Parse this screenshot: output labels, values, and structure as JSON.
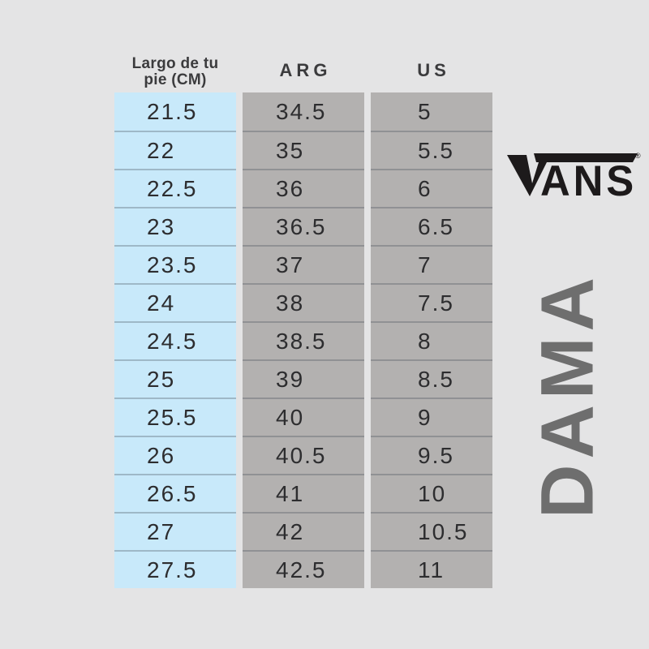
{
  "page": {
    "background": "#e4e4e5"
  },
  "table": {
    "columns": [
      {
        "key": "cm",
        "header_lines": [
          "Largo de tu",
          "pie (CM)"
        ],
        "bg": "#c8e9fa"
      },
      {
        "key": "arg",
        "header": "ARG",
        "bg": "#b3b1b0"
      },
      {
        "key": "us",
        "header": "US",
        "bg": "#b3b1b0"
      }
    ],
    "rows": [
      {
        "cm": "21.5",
        "arg": "34.5",
        "us": "5"
      },
      {
        "cm": "22",
        "arg": "35",
        "us": "5.5"
      },
      {
        "cm": "22.5",
        "arg": "36",
        "us": "6"
      },
      {
        "cm": "23",
        "arg": "36.5",
        "us": "6.5"
      },
      {
        "cm": "23.5",
        "arg": "37",
        "us": "7"
      },
      {
        "cm": "24",
        "arg": "38",
        "us": "7.5"
      },
      {
        "cm": "24.5",
        "arg": "38.5",
        "us": "8"
      },
      {
        "cm": "25",
        "arg": "39",
        "us": "8.5"
      },
      {
        "cm": "25.5",
        "arg": "40",
        "us": "9"
      },
      {
        "cm": "26",
        "arg": "40.5",
        "us": "9.5"
      },
      {
        "cm": "26.5",
        "arg": "41",
        "us": "10"
      },
      {
        "cm": "27",
        "arg": "42",
        "us": "10.5"
      },
      {
        "cm": "27.5",
        "arg": "42.5",
        "us": "11"
      }
    ]
  },
  "brand": {
    "name": "VANS",
    "logo_letters": "ANS",
    "registered_mark": "®",
    "color": "#1d1a1b"
  },
  "side_label": {
    "text": "DAMA",
    "color": "#6e6e6e"
  }
}
